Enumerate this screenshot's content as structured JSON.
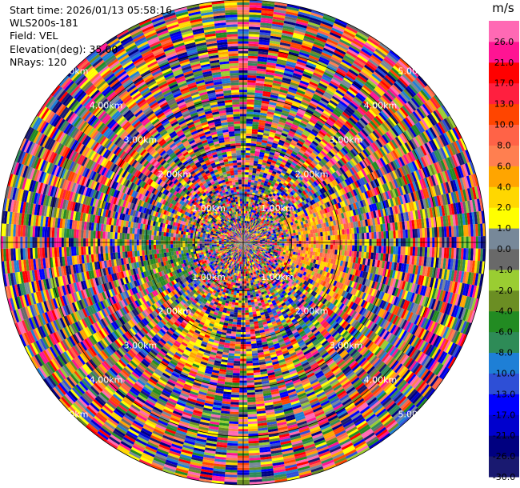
{
  "header": {
    "start_time": "Start time: 2026/01/13 05:58:16",
    "instrument": "WLS200s-181",
    "field": "Field: VEL",
    "elevation": "Elevation(deg): 35.00",
    "nrays": "NRays: 120"
  },
  "chart_data": {
    "type": "heatmap",
    "projection": "polar-ppi",
    "field": "VEL",
    "units": "m/s",
    "n_rays": 120,
    "range_max_km": 5.0,
    "range_rings_km": [
      1.0,
      2.0,
      3.0,
      4.0,
      5.0
    ],
    "range_ring_labels": [
      "1.00km",
      "2.00km",
      "3.00km",
      "4.00km",
      "5.00km"
    ],
    "grid": true,
    "colorbar": {
      "title": "m/s",
      "boundaries": [
        -30.0,
        -26.0,
        -21.0,
        -17.0,
        -13.0,
        -10.0,
        -8.0,
        -6.0,
        -4.0,
        -2.0,
        -1.0,
        0.0,
        1.0,
        2.0,
        4.0,
        6.0,
        8.0,
        10.0,
        13.0,
        17.0,
        21.0,
        26.0
      ],
      "tick_labels": [
        "-30.0",
        "-26.0",
        "-21.0",
        "-17.0",
        "-13.0",
        "-10.0",
        "-8.0",
        "-6.0",
        "-4.0",
        "-2.0",
        "-1.0",
        "0.0",
        "1.0",
        "2.0",
        "4.0",
        "6.0",
        "8.0",
        "10.0",
        "13.0",
        "17.0",
        "21.0",
        "26.0"
      ],
      "colors": [
        "#191970",
        "#000080",
        "#0000cd",
        "#0000ff",
        "#2e4fd6",
        "#1e7fd6",
        "#2e8b57",
        "#228b22",
        "#6b8e23",
        "#9acd32",
        "#696969",
        "#778899",
        "#ffff00",
        "#ffd700",
        "#ffa500",
        "#ff7f50",
        "#ff6347",
        "#ff4500",
        "#ff1f3f",
        "#ff0000",
        "#ff1493",
        "#ff69b4"
      ]
    }
  }
}
